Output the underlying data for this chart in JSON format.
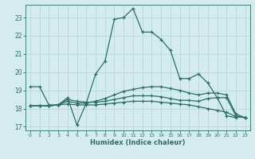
{
  "xlabel": "Humidex (Indice chaleur)",
  "bg_color": "#d4ecee",
  "grid_color": "#b8d8d8",
  "line_color": "#2a6e68",
  "xlim": [
    -0.5,
    23.5
  ],
  "ylim": [
    16.8,
    23.7
  ],
  "yticks": [
    17,
    18,
    19,
    20,
    21,
    22,
    23
  ],
  "xticks": [
    0,
    1,
    2,
    3,
    4,
    5,
    6,
    7,
    8,
    9,
    10,
    11,
    12,
    13,
    14,
    15,
    16,
    17,
    18,
    19,
    20,
    21,
    22,
    23
  ],
  "lines": [
    {
      "x": [
        0,
        1,
        2,
        3,
        4,
        5,
        6,
        7,
        8,
        9,
        10,
        11,
        12,
        13,
        14,
        15,
        16,
        17,
        18,
        19,
        20,
        21,
        22,
        23
      ],
      "y": [
        19.2,
        19.2,
        18.2,
        18.2,
        18.6,
        17.1,
        18.3,
        19.9,
        20.6,
        22.9,
        23.0,
        23.5,
        22.2,
        22.2,
        21.8,
        21.2,
        19.65,
        19.65,
        19.9,
        19.4,
        18.6,
        17.6,
        17.5,
        null
      ]
    },
    {
      "x": [
        0,
        1,
        2,
        3,
        4,
        5,
        6,
        7,
        8,
        9,
        10,
        11,
        12,
        13,
        14,
        15,
        16,
        17,
        18,
        19,
        20,
        21,
        22,
        23
      ],
      "y": [
        18.15,
        18.15,
        18.15,
        18.2,
        18.25,
        18.2,
        18.2,
        18.2,
        18.25,
        18.3,
        18.35,
        18.4,
        18.4,
        18.4,
        18.35,
        18.3,
        18.25,
        18.2,
        18.1,
        18.0,
        17.9,
        17.8,
        17.55,
        17.5
      ]
    },
    {
      "x": [
        0,
        1,
        2,
        3,
        4,
        5,
        6,
        7,
        8,
        9,
        10,
        11,
        12,
        13,
        14,
        15,
        16,
        17,
        18,
        19,
        20,
        21,
        22,
        23
      ],
      "y": [
        18.15,
        18.15,
        18.15,
        18.2,
        18.5,
        18.4,
        18.35,
        18.35,
        18.4,
        18.5,
        18.6,
        18.7,
        18.7,
        18.7,
        18.65,
        18.55,
        18.45,
        18.45,
        18.4,
        18.55,
        18.6,
        18.6,
        17.6,
        17.5
      ]
    },
    {
      "x": [
        0,
        1,
        2,
        3,
        4,
        5,
        6,
        7,
        8,
        9,
        10,
        11,
        12,
        13,
        14,
        15,
        16,
        17,
        18,
        19,
        20,
        21,
        22,
        23
      ],
      "y": [
        18.15,
        18.15,
        18.15,
        18.2,
        18.4,
        18.3,
        18.3,
        18.4,
        18.55,
        18.75,
        18.95,
        19.05,
        19.15,
        19.2,
        19.2,
        19.1,
        19.0,
        18.85,
        18.75,
        18.85,
        18.85,
        18.75,
        17.7,
        17.5
      ]
    }
  ]
}
